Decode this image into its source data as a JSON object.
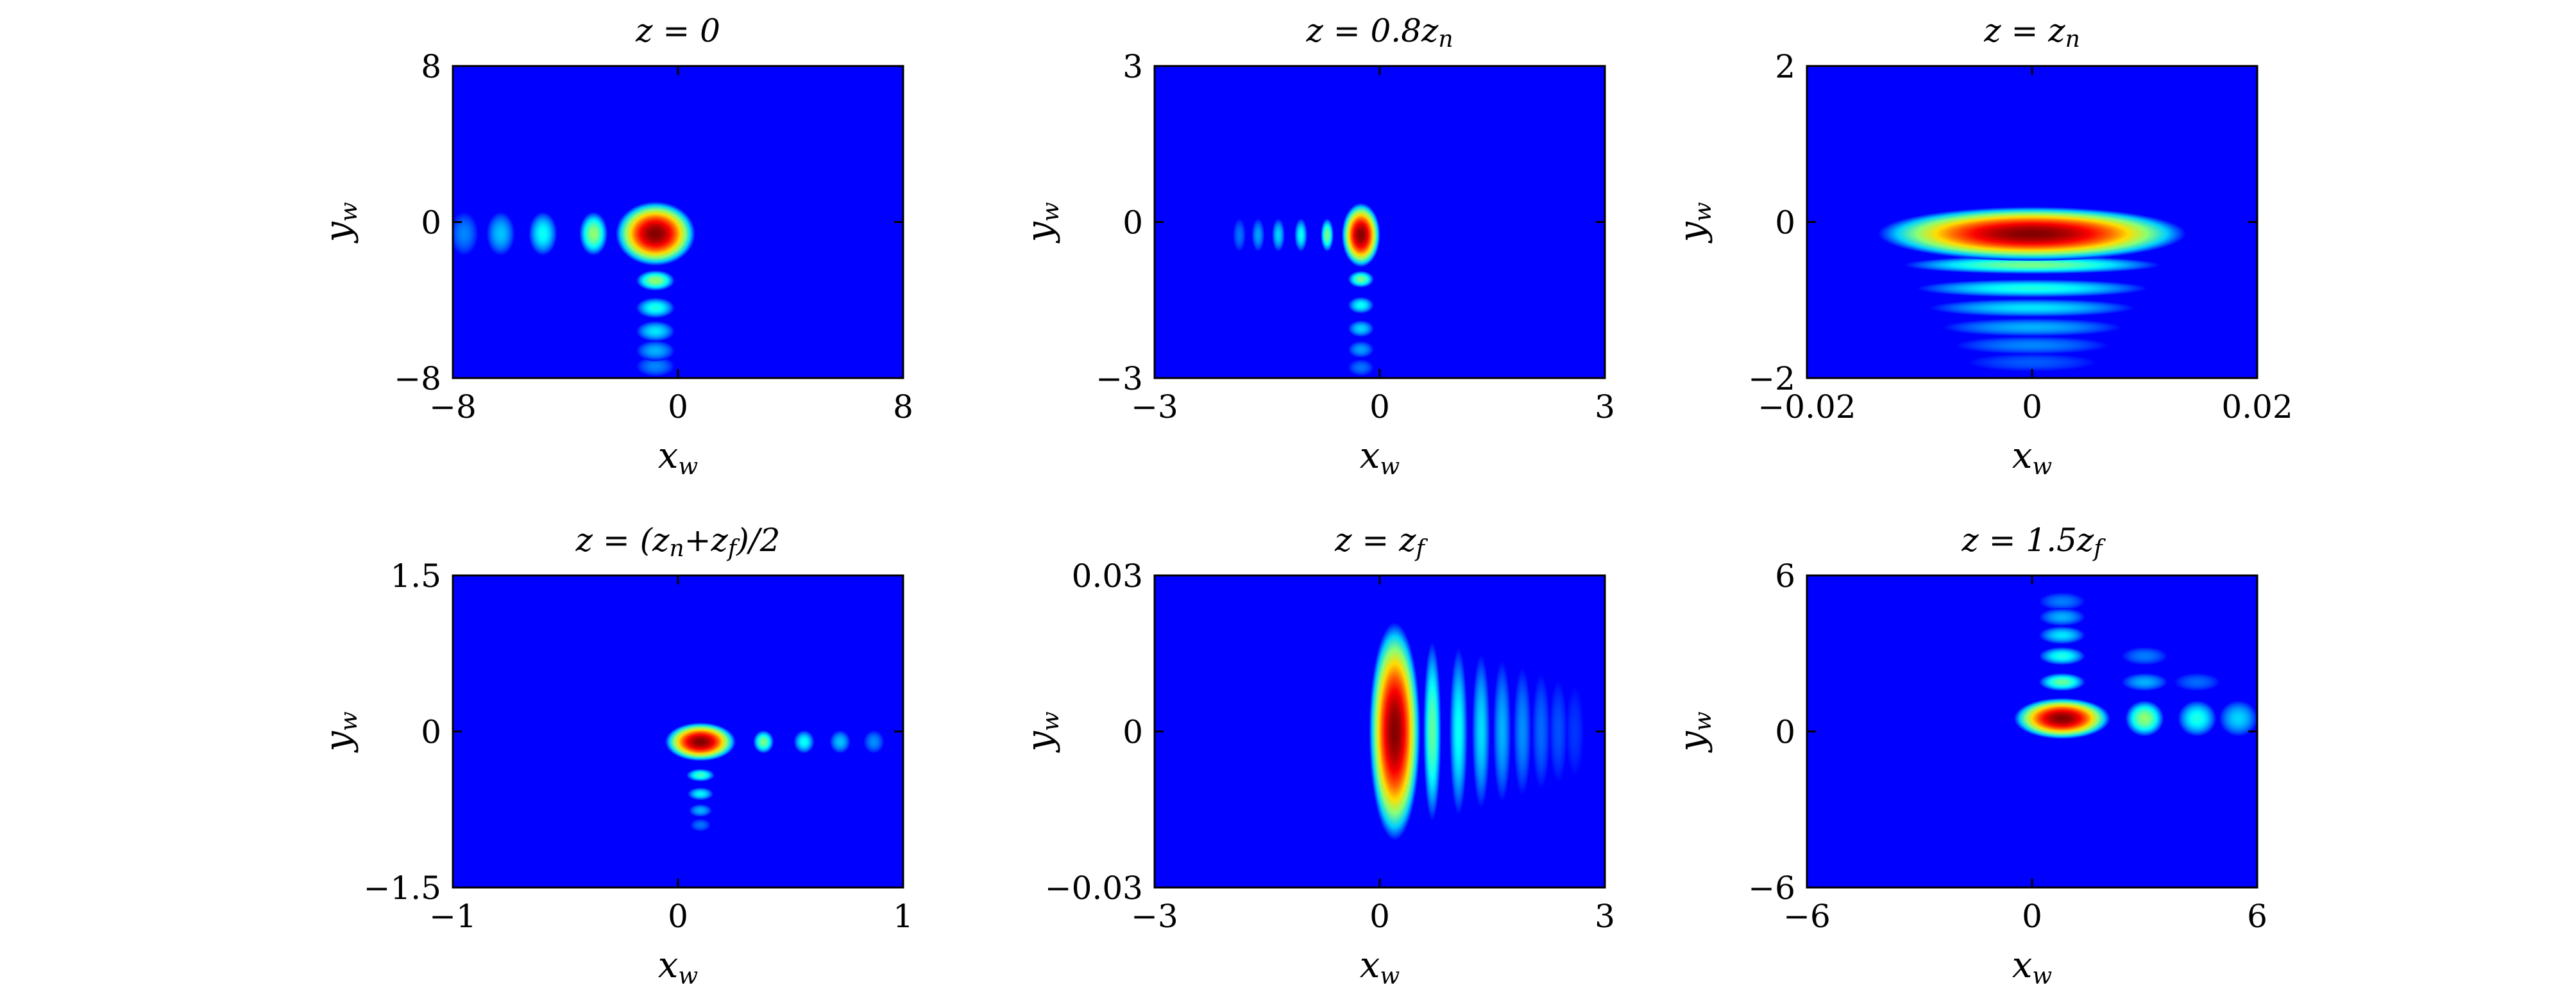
{
  "chart_data": [
    {
      "type": "heatmap",
      "title": "z = 0",
      "xlabel": "x_w",
      "ylabel": "y_w",
      "xlim": [
        -8,
        8
      ],
      "ylim": [
        -8,
        8
      ],
      "xticks": [
        "−8",
        "0",
        "8"
      ],
      "yticks": [
        "8",
        "0",
        "−8"
      ],
      "colormap": "jet",
      "intensity_spots": [
        {
          "x": -0.8,
          "y": -0.6,
          "intensity": 1.0
        },
        {
          "x": -3.0,
          "y": -0.6,
          "intensity": 0.45
        },
        {
          "x": -4.8,
          "y": -0.6,
          "intensity": 0.3
        },
        {
          "x": -6.3,
          "y": -0.6,
          "intensity": 0.22
        },
        {
          "x": -7.6,
          "y": -0.6,
          "intensity": 0.15
        },
        {
          "x": -0.8,
          "y": -3.0,
          "intensity": 0.45
        },
        {
          "x": -0.8,
          "y": -4.4,
          "intensity": 0.32
        },
        {
          "x": -0.8,
          "y": -5.6,
          "intensity": 0.26
        },
        {
          "x": -0.8,
          "y": -6.6,
          "intensity": 0.2
        },
        {
          "x": -0.8,
          "y": -7.4,
          "intensity": 0.15
        }
      ]
    },
    {
      "type": "heatmap",
      "title": "z = 0.8z_n",
      "xlabel": "x_w",
      "ylabel": "y_w",
      "xlim": [
        -3,
        3
      ],
      "ylim": [
        -3,
        3
      ],
      "xticks": [
        "−3",
        "0",
        "3"
      ],
      "yticks": [
        "3",
        "0",
        "−3"
      ],
      "colormap": "jet",
      "intensity_spots": [
        {
          "x": -0.25,
          "y": -0.25,
          "intensity": 1.0
        },
        {
          "x": -0.7,
          "y": -0.25,
          "intensity": 0.42
        },
        {
          "x": -1.05,
          "y": -0.25,
          "intensity": 0.3
        },
        {
          "x": -1.35,
          "y": -0.25,
          "intensity": 0.24
        },
        {
          "x": -1.62,
          "y": -0.25,
          "intensity": 0.18
        },
        {
          "x": -1.87,
          "y": -0.25,
          "intensity": 0.13
        },
        {
          "x": -0.25,
          "y": -1.1,
          "intensity": 0.42
        },
        {
          "x": -0.25,
          "y": -1.6,
          "intensity": 0.3
        },
        {
          "x": -0.25,
          "y": -2.05,
          "intensity": 0.24
        },
        {
          "x": -0.25,
          "y": -2.45,
          "intensity": 0.18
        },
        {
          "x": -0.25,
          "y": -2.8,
          "intensity": 0.13
        }
      ]
    },
    {
      "type": "heatmap",
      "title": "z = z_n",
      "xlabel": "x_w",
      "ylabel": "y_w",
      "xlim": [
        -0.02,
        0.02
      ],
      "ylim": [
        -2,
        2
      ],
      "xticks": [
        "−0.02",
        "0",
        "0.02"
      ],
      "yticks": [
        "2",
        "0",
        "−2"
      ],
      "colormap": "jet",
      "intensity_spots": [
        {
          "x": 0.0,
          "y": -0.15,
          "intensity": 1.0
        },
        {
          "x": 0.0,
          "y": -0.55,
          "intensity": 0.42
        },
        {
          "x": 0.0,
          "y": -0.85,
          "intensity": 0.32
        },
        {
          "x": 0.0,
          "y": -1.1,
          "intensity": 0.26
        },
        {
          "x": 0.0,
          "y": -1.35,
          "intensity": 0.2
        },
        {
          "x": 0.0,
          "y": -1.58,
          "intensity": 0.15
        },
        {
          "x": 0.0,
          "y": -1.8,
          "intensity": 0.1
        }
      ]
    },
    {
      "type": "heatmap",
      "title": "z = (z_n + z_f)/2",
      "xlabel": "x_w",
      "ylabel": "y_w",
      "xlim": [
        -1,
        1
      ],
      "ylim": [
        -1.5,
        1.5
      ],
      "xticks": [
        "−1",
        "0",
        "1"
      ],
      "yticks": [
        "1.5",
        "0",
        "−1.5"
      ],
      "colormap": "jet",
      "intensity_spots": [
        {
          "x": 0.1,
          "y": -0.1,
          "intensity": 1.0
        },
        {
          "x": 0.38,
          "y": -0.1,
          "intensity": 0.42
        },
        {
          "x": 0.56,
          "y": -0.1,
          "intensity": 0.3
        },
        {
          "x": 0.72,
          "y": -0.1,
          "intensity": 0.22
        },
        {
          "x": 0.87,
          "y": -0.1,
          "intensity": 0.16
        },
        {
          "x": 0.1,
          "y": -0.42,
          "intensity": 0.36
        },
        {
          "x": 0.1,
          "y": -0.6,
          "intensity": 0.28
        },
        {
          "x": 0.1,
          "y": -0.76,
          "intensity": 0.2
        },
        {
          "x": 0.1,
          "y": -0.9,
          "intensity": 0.13
        }
      ]
    },
    {
      "type": "heatmap",
      "title": "z = z_f",
      "xlabel": "x_w",
      "ylabel": "y_w",
      "xlim": [
        -3,
        3
      ],
      "ylim": [
        -0.03,
        0.03
      ],
      "xticks": [
        "−3",
        "0",
        "3"
      ],
      "yticks": [
        "0.03",
        "0",
        "−0.03"
      ],
      "colormap": "jet",
      "intensity_spots": [
        {
          "x": 0.2,
          "y": 0.0,
          "intensity": 1.0
        },
        {
          "x": 0.7,
          "y": 0.0,
          "intensity": 0.4
        },
        {
          "x": 1.05,
          "y": 0.0,
          "intensity": 0.3
        },
        {
          "x": 1.35,
          "y": 0.0,
          "intensity": 0.25
        },
        {
          "x": 1.63,
          "y": 0.0,
          "intensity": 0.2
        },
        {
          "x": 1.9,
          "y": 0.0,
          "intensity": 0.16
        },
        {
          "x": 2.15,
          "y": 0.0,
          "intensity": 0.12
        },
        {
          "x": 2.38,
          "y": 0.0,
          "intensity": 0.09
        },
        {
          "x": 2.6,
          "y": 0.0,
          "intensity": 0.06
        }
      ]
    },
    {
      "type": "heatmap",
      "title": "z = 1.5z_f",
      "xlabel": "x_w",
      "ylabel": "y_w",
      "xlim": [
        -6,
        6
      ],
      "ylim": [
        -6,
        6
      ],
      "xticks": [
        "−6",
        "0",
        "6"
      ],
      "yticks": [
        "6",
        "0",
        "−6"
      ],
      "colormap": "jet",
      "intensity_spots": [
        {
          "x": 0.8,
          "y": 0.5,
          "intensity": 1.0
        },
        {
          "x": 3.0,
          "y": 0.5,
          "intensity": 0.45
        },
        {
          "x": 4.4,
          "y": 0.5,
          "intensity": 0.32
        },
        {
          "x": 5.5,
          "y": 0.5,
          "intensity": 0.24
        },
        {
          "x": 0.8,
          "y": 1.9,
          "intensity": 0.4
        },
        {
          "x": 0.8,
          "y": 2.9,
          "intensity": 0.32
        },
        {
          "x": 0.8,
          "y": 3.7,
          "intensity": 0.26
        },
        {
          "x": 0.8,
          "y": 4.4,
          "intensity": 0.2
        },
        {
          "x": 0.8,
          "y": 5.0,
          "intensity": 0.14
        },
        {
          "x": 3.0,
          "y": 1.9,
          "intensity": 0.2
        },
        {
          "x": 3.0,
          "y": 2.9,
          "intensity": 0.14
        },
        {
          "x": 4.4,
          "y": 1.9,
          "intensity": 0.12
        }
      ]
    }
  ]
}
